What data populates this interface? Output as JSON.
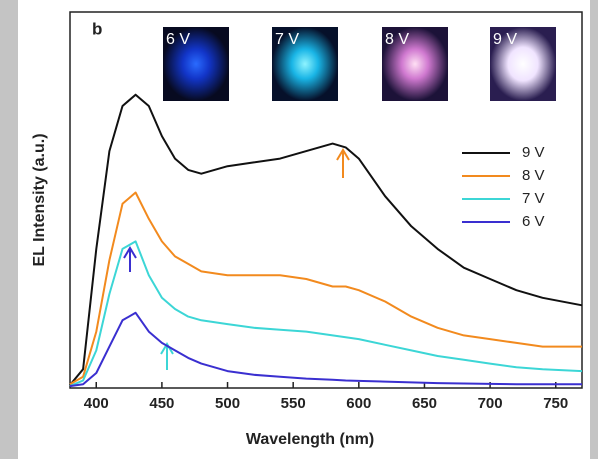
{
  "chart_data": {
    "type": "line",
    "panel_label": "b",
    "x_label": "Wavelength (nm)",
    "y_label": "EL Intensity (a.u.)",
    "inset_labels": [
      "6 V",
      "7 V",
      "8 V",
      "9 V"
    ],
    "x": [
      380,
      390,
      400,
      410,
      420,
      430,
      440,
      450,
      460,
      470,
      480,
      500,
      520,
      540,
      560,
      580,
      590,
      600,
      620,
      640,
      660,
      680,
      700,
      720,
      740,
      770
    ],
    "xlim": [
      380,
      770
    ],
    "xticks": [
      400,
      450,
      500,
      550,
      600,
      650,
      700,
      750
    ],
    "ylim": [
      0,
      1
    ],
    "legend": "right",
    "series": [
      {
        "name": "9 V",
        "color": "#111111",
        "values": [
          0.008,
          0.05,
          0.37,
          0.63,
          0.75,
          0.78,
          0.75,
          0.67,
          0.61,
          0.58,
          0.57,
          0.59,
          0.6,
          0.61,
          0.63,
          0.65,
          0.64,
          0.61,
          0.51,
          0.43,
          0.37,
          0.32,
          0.29,
          0.26,
          0.24,
          0.22
        ]
      },
      {
        "name": "8 V",
        "color": "#f28a1e",
        "values": [
          0.01,
          0.03,
          0.15,
          0.34,
          0.49,
          0.52,
          0.45,
          0.39,
          0.35,
          0.33,
          0.31,
          0.3,
          0.3,
          0.3,
          0.29,
          0.27,
          0.27,
          0.26,
          0.23,
          0.19,
          0.16,
          0.14,
          0.13,
          0.12,
          0.11,
          0.11
        ]
      },
      {
        "name": "7 V",
        "color": "#3cd6d6",
        "values": [
          0.005,
          0.02,
          0.1,
          0.25,
          0.37,
          0.39,
          0.3,
          0.24,
          0.21,
          0.19,
          0.18,
          0.17,
          0.16,
          0.155,
          0.15,
          0.14,
          0.135,
          0.13,
          0.115,
          0.1,
          0.085,
          0.075,
          0.065,
          0.055,
          0.05,
          0.045
        ]
      },
      {
        "name": "6 V",
        "color": "#3a2fd0",
        "values": [
          0.005,
          0.01,
          0.04,
          0.11,
          0.18,
          0.2,
          0.15,
          0.12,
          0.1,
          0.08,
          0.065,
          0.045,
          0.035,
          0.03,
          0.025,
          0.022,
          0.02,
          0.019,
          0.017,
          0.015,
          0.013,
          0.012,
          0.011,
          0.01,
          0.01,
          0.01
        ]
      }
    ]
  }
}
